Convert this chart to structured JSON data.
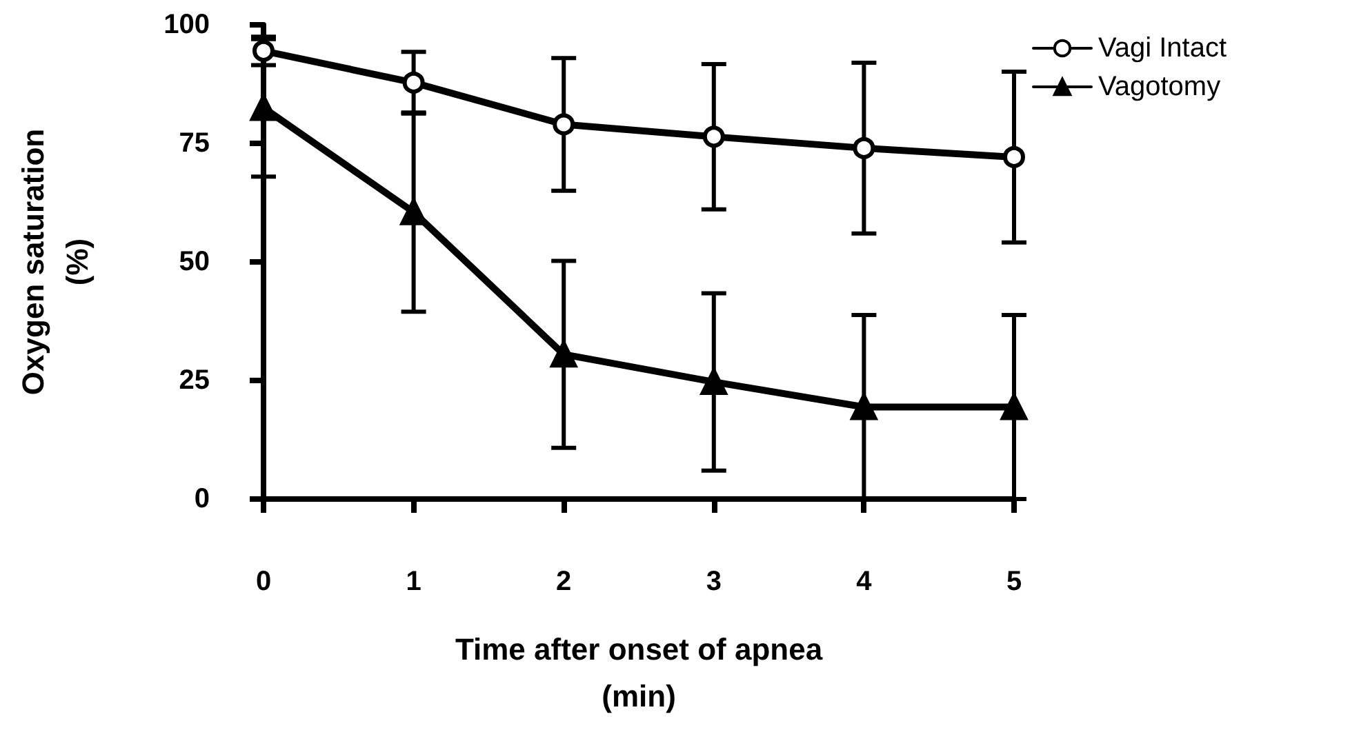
{
  "chart_data": {
    "type": "line",
    "xlabel": "Time after onset of apnea\n(min)",
    "ylabel": "Oxygen saturation\n(%)",
    "x": [
      0,
      1,
      2,
      3,
      4,
      5
    ],
    "xlim": [
      0,
      5
    ],
    "xticks": [
      0,
      1,
      2,
      3,
      4,
      5
    ],
    "ylim": [
      0,
      100
    ],
    "yticks": [
      0,
      25,
      50,
      75,
      100
    ],
    "grid": false,
    "legend": "top right",
    "line_style": "solid",
    "series": [
      {
        "name": "Vagi Intact",
        "color": "#000000",
        "marker": "circle",
        "values": [
          94.5,
          87.8,
          79.0,
          76.4,
          74.0,
          72.1
        ],
        "errors": [
          3,
          6.5,
          14,
          15.3,
          18,
          18
        ]
      },
      {
        "name": "Vagotomy",
        "color": "#000000",
        "marker": "triangle",
        "values": [
          82.5,
          60.5,
          30.5,
          24.7,
          19.4,
          19.4
        ],
        "errors": [
          14.5,
          21,
          19.7,
          18.7,
          19.4,
          19.4
        ]
      }
    ]
  }
}
